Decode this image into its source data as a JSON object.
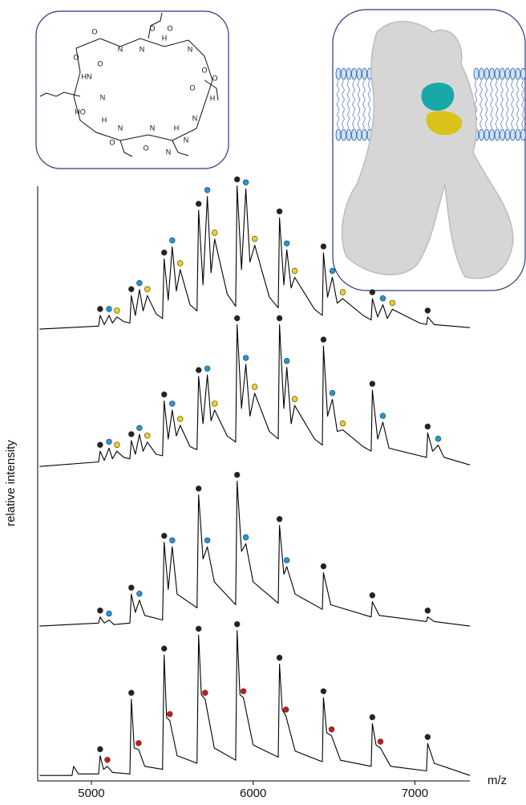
{
  "chart_data": {
    "type": "line",
    "x_label": "m/z",
    "y_label": "relative intensity",
    "xlim": [
      4668,
      7340
    ],
    "xticks": [
      5000,
      6000,
      7000
    ],
    "structure": {
      "atom_labels": [
        "O",
        "N",
        "N",
        "H",
        "O",
        "N",
        "O",
        "HN",
        "N",
        "O",
        "O",
        "H",
        "N",
        "HO",
        "O",
        "N",
        "O",
        "N",
        "H",
        "N",
        "O",
        "O",
        "N",
        "H",
        "O"
      ]
    },
    "panels": [
      {
        "ylim": [
          0,
          100
        ],
        "trace": {
          "color": "#000000",
          "x": [
            4680,
            5045,
            5054,
            5080,
            5109,
            5130,
            5158,
            5200,
            5238,
            5247,
            5272,
            5297,
            5320,
            5346,
            5400,
            5440,
            5450,
            5475,
            5500,
            5525,
            5549,
            5610,
            5653,
            5663,
            5690,
            5717,
            5740,
            5762,
            5840,
            5892,
            5901,
            5928,
            5955,
            5980,
            6010,
            6100,
            6155,
            6163,
            6190,
            6208,
            6235,
            6257,
            6380,
            6428,
            6435,
            6460,
            6490,
            6520,
            6554,
            6680,
            6730,
            6737,
            6770,
            6802,
            6830,
            6861,
            7030,
            7072,
            7079,
            7120,
            7340
          ],
          "values": [
            1,
            3,
            10,
            4,
            10,
            5,
            9,
            6,
            5,
            23,
            10,
            27,
            13,
            23,
            11,
            8,
            47,
            20,
            55,
            26,
            40,
            17,
            13,
            79,
            30,
            88,
            38,
            60,
            24,
            16,
            95,
            40,
            93,
            45,
            56,
            22,
            15,
            74,
            30,
            53,
            28,
            35,
            14,
            10,
            51,
            22,
            35,
            18,
            21,
            10,
            7,
            21,
            9,
            17,
            8,
            14,
            5,
            4,
            9,
            4,
            2
          ]
        },
        "series": [
          {
            "color": "#222222",
            "x": [
              5054,
              5247,
              5450,
              5663,
              5901,
              6163,
              6435,
              6737,
              7079
            ],
            "values": [
              10,
              23,
              47,
              79,
              95,
              74,
              51,
              21,
              9
            ]
          },
          {
            "color": "#1e9ad6",
            "x": [
              5109,
              5297,
              5500,
              5717,
              5955,
              6208,
              6490,
              6802
            ],
            "values": [
              10,
              27,
              55,
              88,
              93,
              53,
              35,
              17
            ]
          },
          {
            "color": "#f2d21b",
            "x": [
              5158,
              5346,
              5549,
              5762,
              6010,
              6257,
              6554,
              6861
            ],
            "values": [
              9,
              23,
              40,
              60,
              56,
              35,
              21,
              14
            ]
          }
        ]
      },
      {
        "ylim": [
          0,
          100
        ],
        "trace": {
          "color": "#000000",
          "x": [
            4680,
            5045,
            5054,
            5080,
            5109,
            5130,
            5158,
            5200,
            5238,
            5247,
            5272,
            5297,
            5320,
            5346,
            5400,
            5440,
            5450,
            5475,
            5500,
            5525,
            5549,
            5610,
            5653,
            5663,
            5690,
            5717,
            5740,
            5762,
            5840,
            5892,
            5901,
            5928,
            5955,
            5980,
            6010,
            6100,
            6155,
            6163,
            6190,
            6208,
            6235,
            6257,
            6380,
            6428,
            6435,
            6460,
            6490,
            6520,
            6554,
            6680,
            6730,
            6737,
            6770,
            6802,
            6840,
            7030,
            7072,
            7079,
            7110,
            7144,
            7180,
            7340
          ],
          "values": [
            2,
            5,
            12,
            6,
            14,
            7,
            12,
            8,
            7,
            19,
            10,
            23,
            12,
            18,
            10,
            9,
            45,
            20,
            39,
            22,
            29,
            15,
            13,
            61,
            30,
            62,
            32,
            39,
            22,
            18,
            95,
            40,
            69,
            35,
            50,
            25,
            20,
            95,
            40,
            67,
            30,
            42,
            20,
            16,
            81,
            35,
            46,
            25,
            26,
            15,
            12,
            52,
            20,
            31,
            14,
            9,
            8,
            24,
            12,
            16,
            8,
            3
          ]
        },
        "series": [
          {
            "color": "#222222",
            "x": [
              5054,
              5247,
              5450,
              5663,
              5901,
              6163,
              6435,
              6737,
              7079
            ],
            "values": [
              12,
              19,
              45,
              61,
              95,
              95,
              81,
              52,
              24
            ]
          },
          {
            "color": "#1e9ad6",
            "x": [
              5109,
              5297,
              5500,
              5717,
              5955,
              6208,
              6490,
              6802,
              7144
            ],
            "values": [
              14,
              23,
              39,
              62,
              69,
              67,
              46,
              31,
              16
            ]
          },
          {
            "color": "#f2d21b",
            "x": [
              5158,
              5346,
              5549,
              5762,
              6010,
              6257,
              6554
            ],
            "values": [
              12,
              18,
              29,
              39,
              50,
              42,
              26
            ]
          }
        ]
      },
      {
        "ylim": [
          0,
          100
        ],
        "trace": {
          "color": "#000000",
          "x": [
            4680,
            5045,
            5054,
            5080,
            5109,
            5140,
            5238,
            5247,
            5272,
            5297,
            5330,
            5440,
            5450,
            5475,
            5500,
            5530,
            5653,
            5663,
            5690,
            5717,
            5760,
            5892,
            5901,
            5928,
            5955,
            6000,
            6155,
            6163,
            6190,
            6208,
            6260,
            6428,
            6435,
            6480,
            6730,
            6737,
            6780,
            7072,
            7079,
            7120,
            7340
          ],
          "values": [
            1,
            3,
            7,
            3,
            5,
            2,
            3,
            22,
            10,
            18,
            8,
            5,
            56,
            25,
            53,
            22,
            13,
            87,
            45,
            53,
            30,
            15,
            96,
            50,
            55,
            30,
            16,
            67,
            35,
            40,
            22,
            12,
            36,
            15,
            7,
            17,
            8,
            4,
            7,
            4,
            1
          ]
        },
        "series": [
          {
            "color": "#222222",
            "x": [
              5054,
              5247,
              5450,
              5663,
              5901,
              6163,
              6435,
              6737,
              7079
            ],
            "values": [
              7,
              22,
              56,
              87,
              96,
              67,
              36,
              17,
              7
            ]
          },
          {
            "color": "#1e9ad6",
            "x": [
              5109,
              5297,
              5500,
              5717,
              5955,
              6208
            ],
            "values": [
              5,
              18,
              53,
              53,
              55,
              40
            ]
          }
        ]
      },
      {
        "ylim": [
          0,
          100
        ],
        "trace": {
          "color": "#000000",
          "x": [
            4680,
            4880,
            4890,
            4920,
            5045,
            5054,
            5075,
            5099,
            5130,
            5238,
            5247,
            5265,
            5292,
            5330,
            5440,
            5450,
            5465,
            5485,
            5530,
            5653,
            5663,
            5680,
            5703,
            5760,
            5892,
            5901,
            5918,
            5940,
            6000,
            6155,
            6163,
            6180,
            6203,
            6260,
            6428,
            6435,
            6455,
            6485,
            6540,
            6730,
            6737,
            6760,
            6787,
            6850,
            7072,
            7079,
            7120,
            7340
          ],
          "values": [
            2,
            2,
            8,
            3,
            3,
            15,
            6,
            8,
            4,
            3,
            52,
            20,
            19,
            8,
            6,
            81,
            40,
            38,
            15,
            10,
            94,
            55,
            52,
            20,
            12,
            97,
            55,
            53,
            22,
            14,
            75,
            45,
            41,
            18,
            11,
            53,
            30,
            28,
            12,
            8,
            36,
            22,
            20,
            8,
            5,
            23,
            10,
            2
          ]
        },
        "series": [
          {
            "color": "#222222",
            "x": [
              5054,
              5247,
              5450,
              5663,
              5901,
              6163,
              6435,
              6737,
              7079
            ],
            "values": [
              15,
              52,
              81,
              94,
              97,
              75,
              53,
              36,
              23
            ]
          },
          {
            "color": "#d0161c",
            "x": [
              5099,
              5292,
              5485,
              5703,
              5940,
              6203,
              6485,
              6787
            ],
            "values": [
              8,
              19,
              38,
              52,
              53,
              41,
              28,
              20
            ]
          }
        ]
      }
    ]
  }
}
